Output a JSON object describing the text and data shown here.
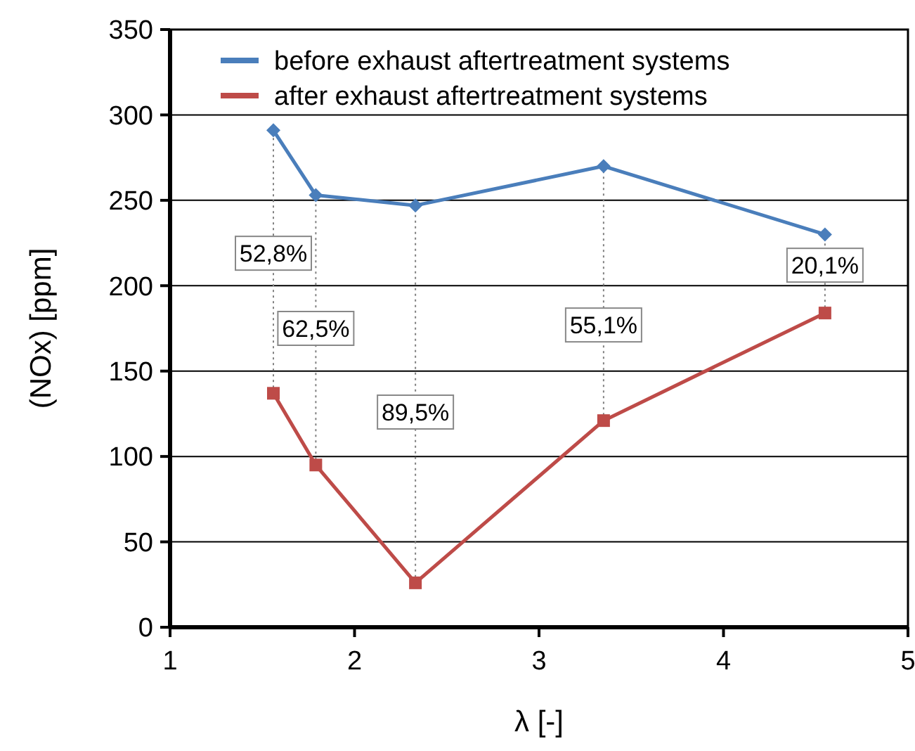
{
  "chart_data": {
    "type": "line",
    "xlabel": "λ [-]",
    "ylabel": "(NOx) [ppm]",
    "xlim": [
      1,
      5
    ],
    "xticks": [
      1,
      2,
      3,
      4,
      5
    ],
    "ylim": [
      0,
      350
    ],
    "yticks": [
      0,
      50,
      100,
      150,
      200,
      250,
      300,
      350
    ],
    "grid": "y",
    "legend": "top left",
    "series": [
      {
        "name": "before exhaust aftertreatment systems",
        "color": "#4a7ebb",
        "marker": "diamond",
        "x": [
          1.56,
          1.79,
          2.33,
          3.35,
          4.55
        ],
        "values": [
          291,
          253,
          247,
          270,
          230
        ]
      },
      {
        "name": "after exhaust aftertreatment systems",
        "color": "#be4b48",
        "marker": "square",
        "x": [
          1.56,
          1.79,
          2.33,
          3.35,
          4.55
        ],
        "values": [
          137,
          95,
          26,
          121,
          184
        ]
      }
    ],
    "ref_lines": [
      {
        "axis": "x",
        "value": 1.56,
        "line_style": "dotted",
        "color": "#808080"
      },
      {
        "axis": "x",
        "value": 1.79,
        "line_style": "dotted",
        "color": "#808080"
      },
      {
        "axis": "x",
        "value": 2.33,
        "line_style": "dotted",
        "color": "#808080"
      },
      {
        "axis": "x",
        "value": 3.35,
        "line_style": "dotted",
        "color": "#808080"
      },
      {
        "axis": "x",
        "value": 4.55,
        "line_style": "dotted",
        "color": "#808080"
      }
    ],
    "annotations": [
      {
        "text": "52,8%",
        "x": 1.56,
        "y": 219
      },
      {
        "text": "62,5%",
        "x": 1.79,
        "y": 175
      },
      {
        "text": "89,5%",
        "x": 2.33,
        "y": 126
      },
      {
        "text": "55,1%",
        "x": 3.35,
        "y": 177
      },
      {
        "text": "20,1%",
        "x": 4.55,
        "y": 212
      }
    ]
  }
}
